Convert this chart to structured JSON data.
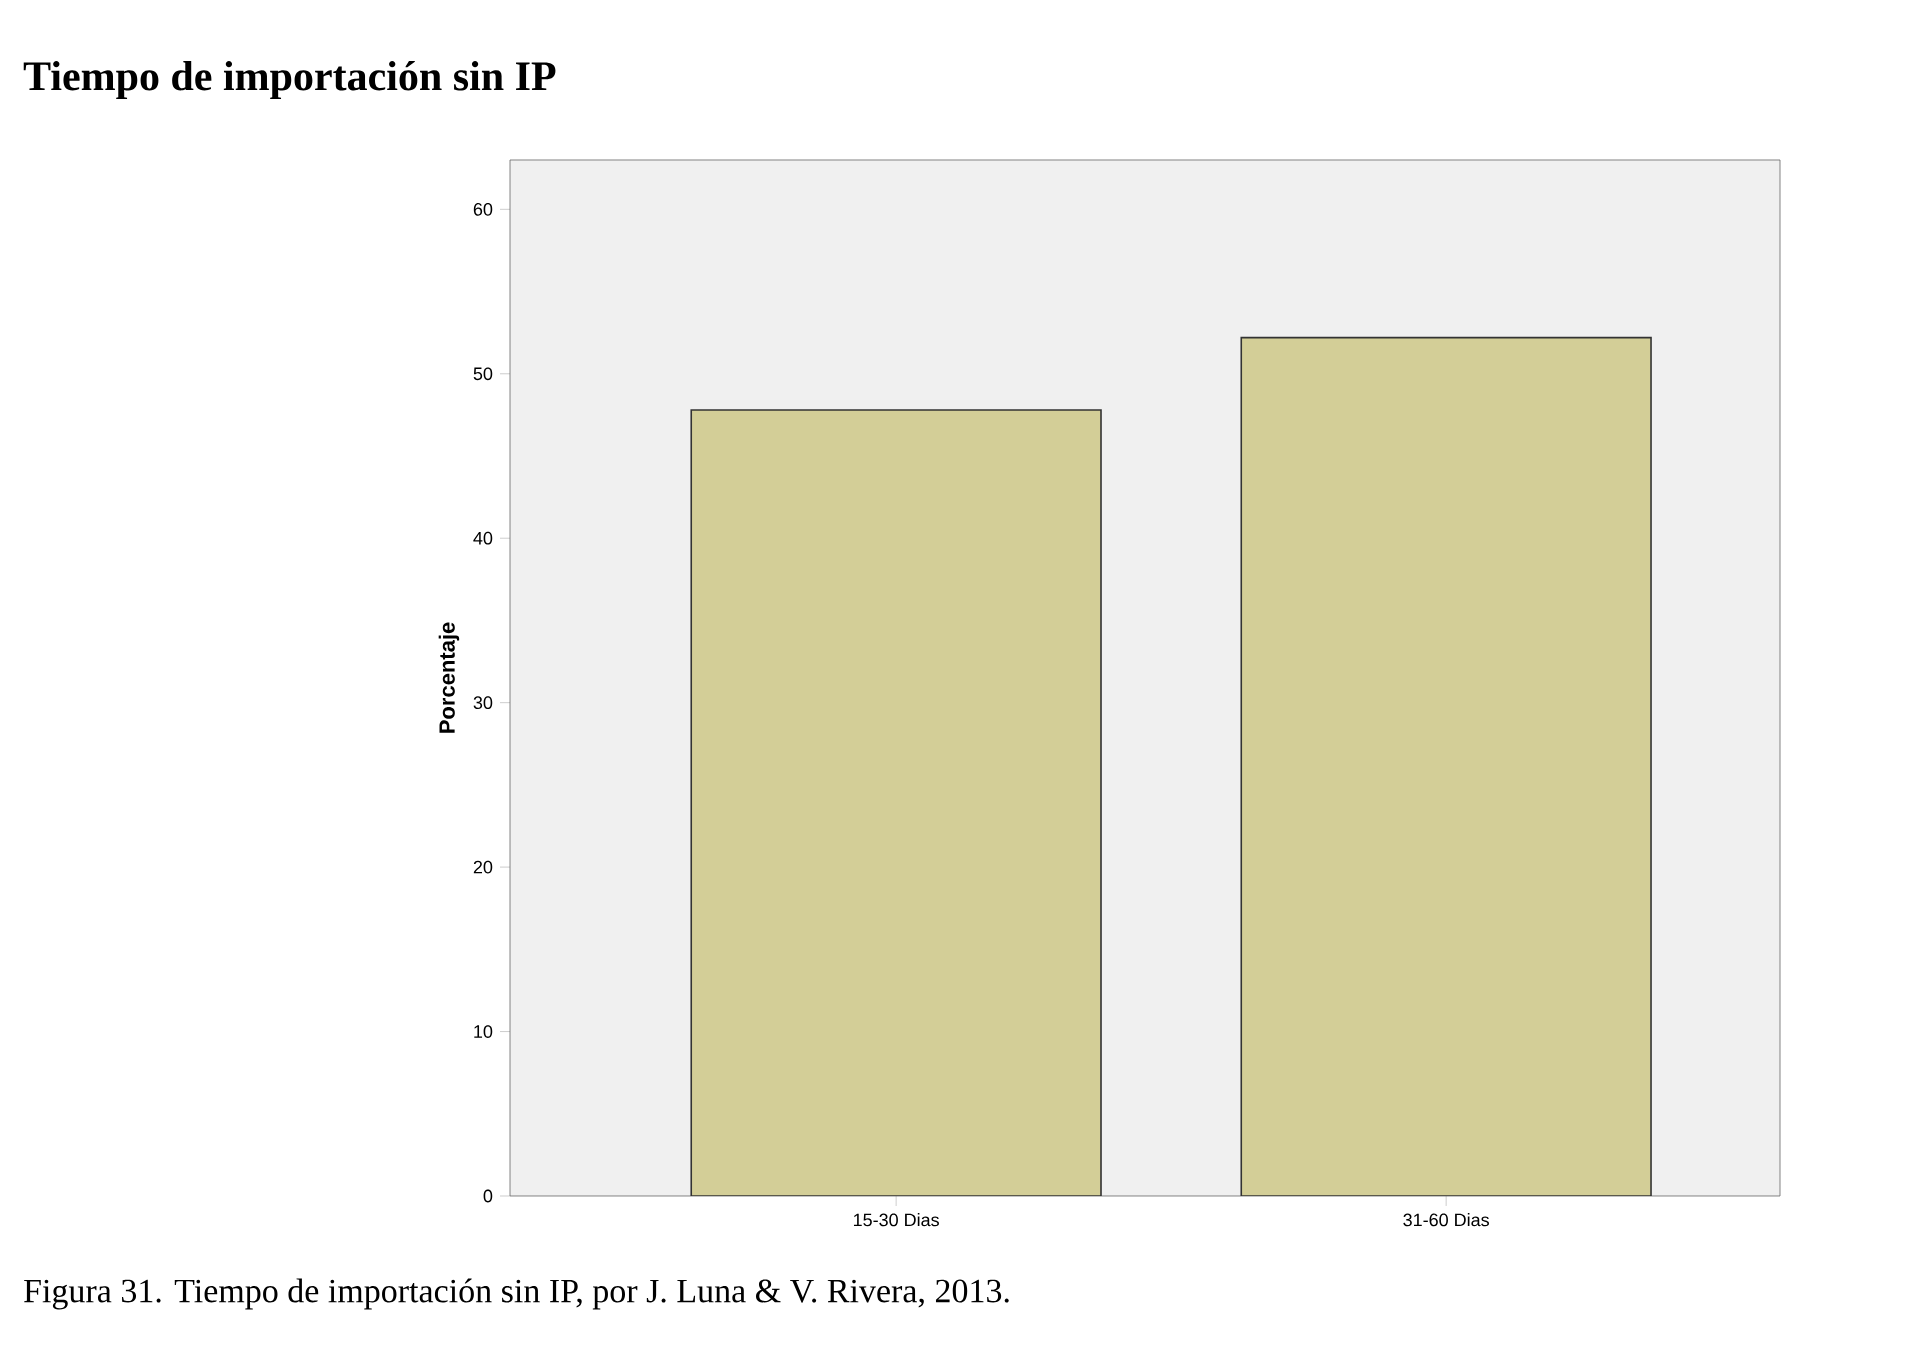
{
  "chart_data": {
    "type": "bar",
    "title": "Tiempo de importación sin IP",
    "categories": [
      "15-30 Dias",
      "31-60 Dias"
    ],
    "values": [
      47.8,
      52.2
    ],
    "color": "#d3ce97",
    "ylabel": "Porcentaje",
    "ylim": [
      0,
      63
    ],
    "yticks": [
      0,
      10,
      20,
      30,
      40,
      50,
      60
    ],
    "annotations": [
      "Figura 31. Tiempo de importación sin IP, por J. Luna & V. Rivera, 2013."
    ]
  }
}
